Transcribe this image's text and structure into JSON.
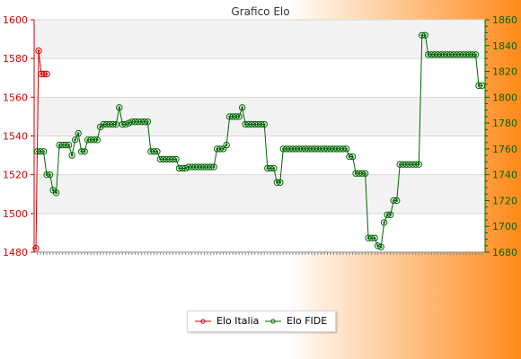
{
  "chart_data": {
    "type": "line",
    "title": "Grafico Elo",
    "colors": {
      "left_axis": "#d40000",
      "right_axis": "#006600",
      "italia": "#d40000",
      "fide": "#006600",
      "background_start": "#ffffff",
      "background_end": "#ff8a1a",
      "band": "#f3f3f3",
      "grid": "#d9d9d9"
    },
    "grid": true,
    "legend_placement": "bottom-center",
    "y_left": {
      "min": 1480,
      "max": 1600,
      "ticks": [
        1480,
        1500,
        1520,
        1540,
        1560,
        1580,
        1600
      ]
    },
    "y_right": {
      "min": 1680,
      "max": 1860,
      "ticks": [
        1680,
        1700,
        1720,
        1740,
        1760,
        1780,
        1800,
        1820,
        1840,
        1860
      ]
    },
    "series": [
      {
        "name": "Elo Italia",
        "axis": "left",
        "values": [
          1482,
          1584,
          1572,
          1572,
          1572
        ]
      },
      {
        "name": "Elo FIDE",
        "axis": "right",
        "values": [
          1758,
          1758,
          1758,
          1740,
          1740,
          1728,
          1726,
          1763,
          1763,
          1763,
          1763,
          1755,
          1767,
          1772,
          1758,
          1758,
          1767,
          1767,
          1767,
          1767,
          1777,
          1779,
          1779,
          1779,
          1779,
          1779,
          1792,
          1779,
          1779,
          1780,
          1781,
          1781,
          1781,
          1781,
          1781,
          1781,
          1758,
          1758,
          1758,
          1752,
          1752,
          1752,
          1752,
          1752,
          1752,
          1745,
          1745,
          1745,
          1746,
          1746,
          1746,
          1746,
          1746,
          1746,
          1746,
          1746,
          1746,
          1760,
          1760,
          1760,
          1763,
          1785,
          1785,
          1785,
          1785,
          1792,
          1779,
          1779,
          1779,
          1779,
          1779,
          1779,
          1779,
          1745,
          1745,
          1745,
          1734,
          1734,
          1760,
          1760,
          1760,
          1760,
          1760,
          1760,
          1760,
          1760,
          1760,
          1760,
          1760,
          1760,
          1760,
          1760,
          1760,
          1760,
          1760,
          1760,
          1760,
          1760,
          1760,
          1754,
          1754,
          1741,
          1741,
          1741,
          1741,
          1691,
          1691,
          1691,
          1685,
          1684,
          1703,
          1709,
          1709,
          1720,
          1720,
          1748,
          1748,
          1748,
          1748,
          1748,
          1748,
          1748,
          1848,
          1848,
          1833,
          1833,
          1833,
          1833,
          1833,
          1833,
          1833,
          1833,
          1833,
          1833,
          1833,
          1833,
          1833,
          1833,
          1833,
          1833,
          1809,
          1809
        ]
      }
    ]
  }
}
